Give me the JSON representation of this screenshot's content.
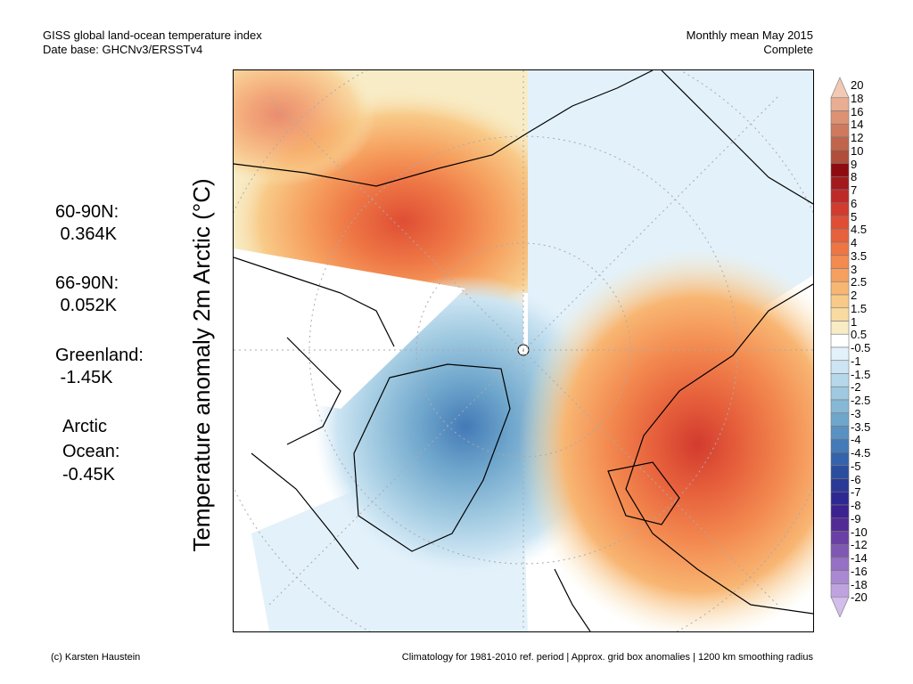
{
  "header": {
    "left_line1": "GISS global land-ocean temperature index",
    "left_line2": "Date base: GHCNv3/ERSSTv4",
    "right_line1": "Monthly mean May 2015",
    "right_line2": "Complete"
  },
  "stats": {
    "n60_label": "60-90N:",
    "n60_value": " 0.364K",
    "n66_label": "66-90N:",
    "n66_value": " 0.052K",
    "greenland_label": "Greenland:",
    "greenland_value": " -1.45K",
    "arctic_label1": "Arctic",
    "arctic_label2": "Ocean:",
    "arctic_value": "-0.45K"
  },
  "axis": {
    "ylabel": "Temperature anomaly 2m Arctic (°C)"
  },
  "colorbar": {
    "labels": [
      "20",
      "18",
      "16",
      "14",
      "12",
      "10",
      "9",
      "8",
      "7",
      "6",
      "5",
      "4.5",
      "4",
      "3.5",
      "3",
      "2.5",
      "2",
      "1.5",
      "1",
      "0.5",
      "-0.5",
      "-1",
      "-1.5",
      "-2",
      "-2.5",
      "-3",
      "-3.5",
      "-4",
      "-4.5",
      "-5",
      "-6",
      "-7",
      "-8",
      "-9",
      "-10",
      "-12",
      "-14",
      "-16",
      "-18",
      "-20"
    ],
    "colors": [
      "#f2c9b4",
      "#e8ad93",
      "#dd9274",
      "#cf7a5e",
      "#c0654b",
      "#b04e3b",
      "#8f0b10",
      "#a31a1d",
      "#bd2a27",
      "#d23b2e",
      "#df4e34",
      "#e7613c",
      "#ee7645",
      "#f38a50",
      "#f6a05f",
      "#f8b673",
      "#f8ca88",
      "#f7dba0",
      "#f8ecc6",
      "#ffffff",
      "#e3f1fa",
      "#cde5f3",
      "#b6d8ea",
      "#9fc9e0",
      "#87b8d6",
      "#6fa6cc",
      "#5891c2",
      "#437ab7",
      "#3563ab",
      "#2b4d9e",
      "#2a3896",
      "#2e2892",
      "#3b2290",
      "#522b95",
      "#6a40a4",
      "#7f58b4",
      "#9570c4",
      "#aa89d2",
      "#bfa3df",
      "#d2bdeb"
    ]
  },
  "footer": {
    "left": "(c) Karsten Haustein",
    "right": "Climatology for 1981-2010 ref. period | Approx. grid box anomalies | 1200 km smoothing radius"
  }
}
